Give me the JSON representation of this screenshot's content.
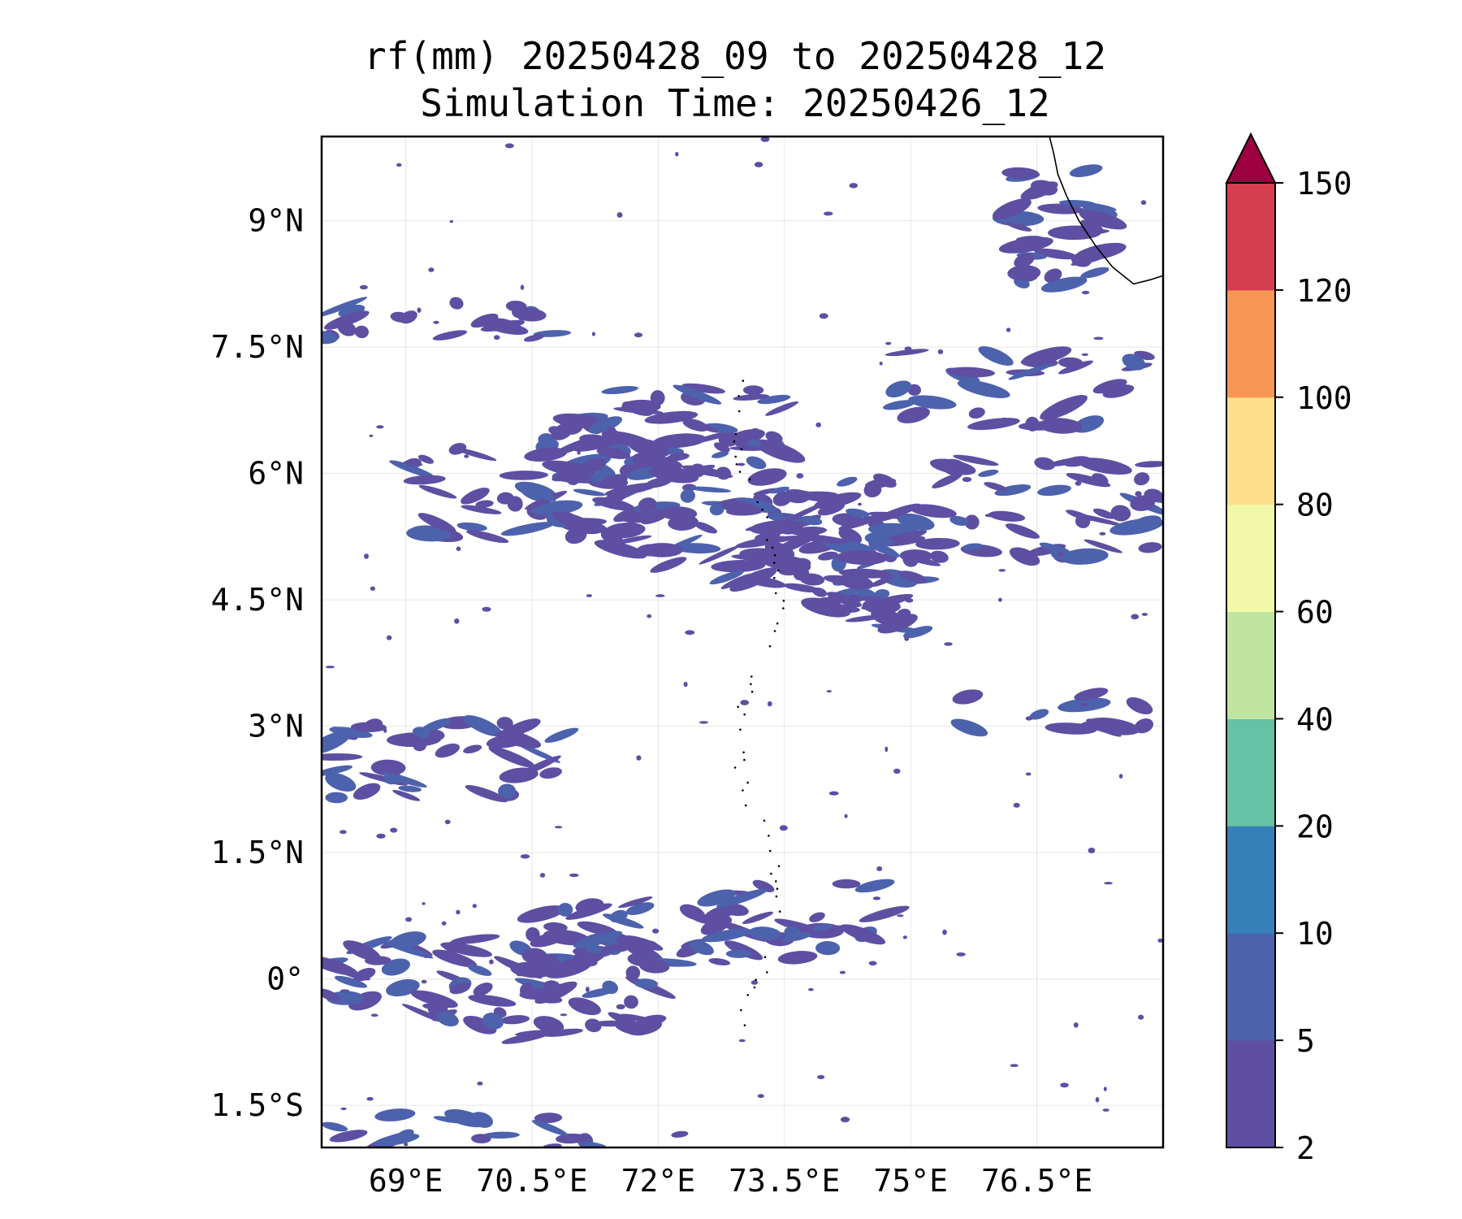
{
  "title": {
    "line1": "rf(mm) 20250428_09 to 20250428_12",
    "line2": "Simulation Time: 20250426_12"
  },
  "map": {
    "lon_range": [
      68.0,
      78.0
    ],
    "lat_range": [
      -2.0,
      10.0
    ],
    "x_ticks": [
      {
        "value": 69.0,
        "label": "69°E"
      },
      {
        "value": 70.5,
        "label": "70.5°E"
      },
      {
        "value": 72.0,
        "label": "72°E"
      },
      {
        "value": 73.5,
        "label": "73.5°E"
      },
      {
        "value": 75.0,
        "label": "75°E"
      },
      {
        "value": 76.5,
        "label": "76.5°E"
      }
    ],
    "y_ticks": [
      {
        "value": 9.0,
        "label": "9°N"
      },
      {
        "value": 7.5,
        "label": "7.5°N"
      },
      {
        "value": 6.0,
        "label": "6°N"
      },
      {
        "value": 4.5,
        "label": "4.5°N"
      },
      {
        "value": 3.0,
        "label": "3°N"
      },
      {
        "value": 1.5,
        "label": "1.5°N"
      },
      {
        "value": 0.0,
        "label": "0°"
      },
      {
        "value": -1.5,
        "label": "1.5°S"
      }
    ],
    "gridlines": true,
    "rain_color": "#5e4fa2",
    "rain_color_2": "#4d62ad",
    "coast_color": "#000000",
    "bands": [
      {
        "lon_min": 70.5,
        "lon_max": 75.2,
        "lat_center": 5.4,
        "lat_spread": 0.7,
        "tilt": -0.28,
        "count": 160
      },
      {
        "lon_min": 71.0,
        "lon_max": 73.6,
        "lat_center": 6.5,
        "lat_spread": 0.55,
        "tilt": 0.0,
        "count": 45
      },
      {
        "lon_min": 69.0,
        "lon_max": 71.0,
        "lat_center": 5.8,
        "lat_spread": 0.55,
        "tilt": 0.0,
        "count": 26
      },
      {
        "lon_min": 74.0,
        "lon_max": 78.0,
        "lat_center": 5.6,
        "lat_spread": 0.6,
        "tilt": 0.0,
        "count": 55
      },
      {
        "lon_min": 74.8,
        "lon_max": 78.0,
        "lat_center": 7.0,
        "lat_spread": 0.45,
        "tilt": 0.0,
        "count": 28
      },
      {
        "lon_min": 68.0,
        "lon_max": 70.8,
        "lat_center": 7.8,
        "lat_spread": 0.25,
        "tilt": 0.0,
        "count": 22
      },
      {
        "lon_min": 68.0,
        "lon_max": 71.0,
        "lat_center": 2.6,
        "lat_spread": 0.45,
        "tilt": 0.0,
        "count": 40
      },
      {
        "lon_min": 75.5,
        "lon_max": 77.8,
        "lat_center": 3.2,
        "lat_spread": 0.25,
        "tilt": 0.0,
        "count": 12
      },
      {
        "lon_min": 68.0,
        "lon_max": 72.0,
        "lat_center": -0.1,
        "lat_spread": 0.6,
        "tilt": 0.0,
        "count": 85
      },
      {
        "lon_min": 70.5,
        "lon_max": 74.8,
        "lat_center": 0.6,
        "lat_spread": 0.45,
        "tilt": 0.1,
        "count": 55
      },
      {
        "lon_min": 68.0,
        "lon_max": 72.5,
        "lat_center": -1.8,
        "lat_spread": 0.2,
        "tilt": 0.0,
        "count": 18
      },
      {
        "lon_min": 76.2,
        "lon_max": 77.3,
        "lat_center": 8.9,
        "lat_spread": 0.7,
        "tilt": 0.0,
        "count": 30
      }
    ]
  },
  "colorbar": {
    "levels": [
      "2",
      "5",
      "10",
      "20",
      "40",
      "60",
      "80",
      "100",
      "120",
      "150"
    ],
    "colors": [
      "#5e4fa2",
      "#4d62ad",
      "#3680b9",
      "#66c2a5",
      "#bfe5a0",
      "#f1f9a9",
      "#fee08b",
      "#f99656",
      "#d53e4f"
    ],
    "extend_color": "#9e0142"
  }
}
